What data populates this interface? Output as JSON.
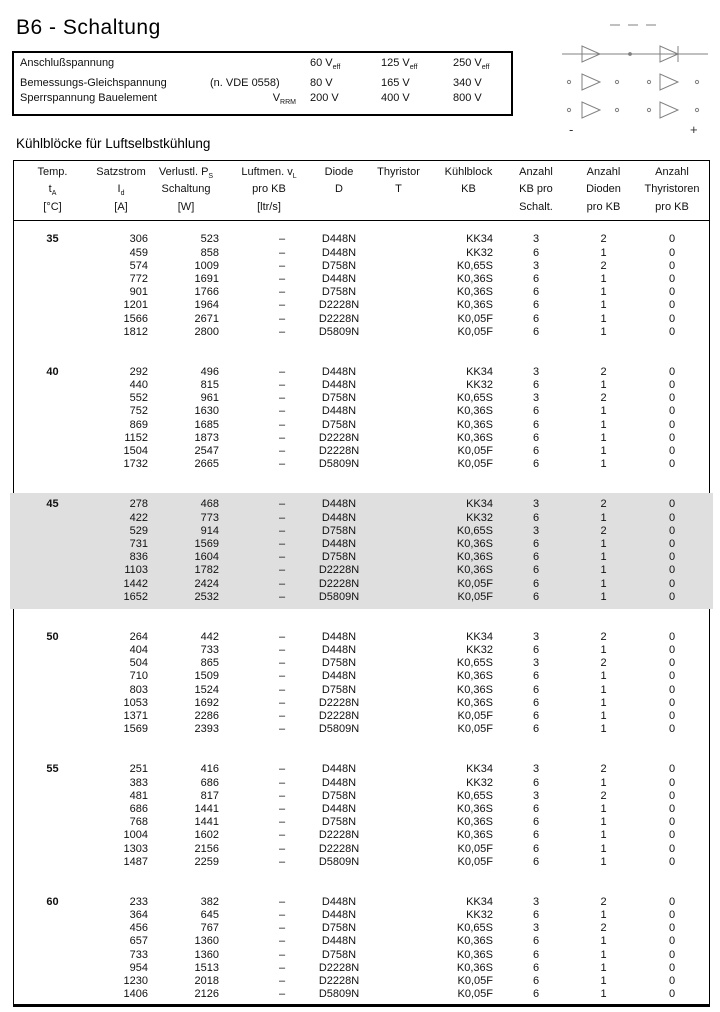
{
  "title": "B6 - Schaltung",
  "section_heading": "Kühlblöcke für Luftselbstkühlung",
  "ratings": {
    "rows": [
      {
        "label": "Anschlußspannung",
        "note": "",
        "values": [
          {
            "t": "60 V",
            "sub": "eff"
          },
          {
            "t": "125 V",
            "sub": "eff"
          },
          {
            "t": "250 V",
            "sub": "eff"
          }
        ]
      },
      {
        "label": "Bemessungs-Gleichspannung",
        "note": "(n. VDE 0558)",
        "values": [
          {
            "t": "80 V",
            "sub": ""
          },
          {
            "t": "165 V",
            "sub": ""
          },
          {
            "t": "340 V",
            "sub": ""
          }
        ]
      },
      {
        "label": "Sperrspannung  Bauelement",
        "note": "",
        "symbol": "V",
        "symbol_sub": "RRM",
        "values": [
          {
            "t": "200 V",
            "sub": ""
          },
          {
            "t": "400 V",
            "sub": ""
          },
          {
            "t": "800 V",
            "sub": ""
          }
        ]
      }
    ]
  },
  "diagram": {
    "minus_label": "-",
    "plus_label": "+"
  },
  "table": {
    "columns": [
      {
        "l1": "Temp.",
        "l1sub": "",
        "l2": "t",
        "l2sub": "A",
        "l3": "[°C]"
      },
      {
        "l1": "Satzstrom",
        "l1sub": "",
        "l2": "I",
        "l2sub": "d",
        "l3": "[A]"
      },
      {
        "l1": "Verlustl. P",
        "l1sub": "S",
        "l2": "Schaltung",
        "l2sub": "",
        "l3": "[W]"
      },
      {
        "l1": "Luftmen. v",
        "l1sub": "L",
        "l2": "pro KB",
        "l2sub": "",
        "l3": "[ltr/s]"
      },
      {
        "l1": "Diode",
        "l1sub": "",
        "l2": "D",
        "l2sub": "",
        "l3": ""
      },
      {
        "l1": "Thyristor",
        "l1sub": "",
        "l2": "T",
        "l2sub": "",
        "l3": ""
      },
      {
        "l1": "Kühlblock",
        "l1sub": "",
        "l2": "KB",
        "l2sub": "",
        "l3": ""
      },
      {
        "l1": "Anzahl",
        "l1sub": "",
        "l2": "KB pro",
        "l2sub": "",
        "l3": "Schalt."
      },
      {
        "l1": "Anzahl",
        "l1sub": "",
        "l2": "Dioden",
        "l2sub": "",
        "l3": "pro KB"
      },
      {
        "l1": "Anzahl",
        "l1sub": "",
        "l2": "Thyristoren",
        "l2sub": "",
        "l3": "pro KB"
      }
    ],
    "groups": [
      {
        "temp": "35",
        "highlighted": false,
        "rows": [
          [
            "306",
            "523",
            "–",
            "D448N",
            "",
            "KK34",
            "3",
            "2",
            "0"
          ],
          [
            "459",
            "858",
            "–",
            "D448N",
            "",
            "KK32",
            "6",
            "1",
            "0"
          ],
          [
            "574",
            "1009",
            "–",
            "D758N",
            "",
            "K0,65S",
            "3",
            "2",
            "0"
          ],
          [
            "772",
            "1691",
            "–",
            "D448N",
            "",
            "K0,36S",
            "6",
            "1",
            "0"
          ],
          [
            "901",
            "1766",
            "–",
            "D758N",
            "",
            "K0,36S",
            "6",
            "1",
            "0"
          ],
          [
            "1201",
            "1964",
            "–",
            "D2228N",
            "",
            "K0,36S",
            "6",
            "1",
            "0"
          ],
          [
            "1566",
            "2671",
            "–",
            "D2228N",
            "",
            "K0,05F",
            "6",
            "1",
            "0"
          ],
          [
            "1812",
            "2800",
            "–",
            "D5809N",
            "",
            "K0,05F",
            "6",
            "1",
            "0"
          ]
        ]
      },
      {
        "temp": "40",
        "highlighted": false,
        "rows": [
          [
            "292",
            "496",
            "–",
            "D448N",
            "",
            "KK34",
            "3",
            "2",
            "0"
          ],
          [
            "440",
            "815",
            "–",
            "D448N",
            "",
            "KK32",
            "6",
            "1",
            "0"
          ],
          [
            "552",
            "961",
            "–",
            "D758N",
            "",
            "K0,65S",
            "3",
            "2",
            "0"
          ],
          [
            "752",
            "1630",
            "–",
            "D448N",
            "",
            "K0,36S",
            "6",
            "1",
            "0"
          ],
          [
            "869",
            "1685",
            "–",
            "D758N",
            "",
            "K0,36S",
            "6",
            "1",
            "0"
          ],
          [
            "1152",
            "1873",
            "–",
            "D2228N",
            "",
            "K0,36S",
            "6",
            "1",
            "0"
          ],
          [
            "1504",
            "2547",
            "–",
            "D2228N",
            "",
            "K0,05F",
            "6",
            "1",
            "0"
          ],
          [
            "1732",
            "2665",
            "–",
            "D5809N",
            "",
            "K0,05F",
            "6",
            "1",
            "0"
          ]
        ]
      },
      {
        "temp": "45",
        "highlighted": true,
        "rows": [
          [
            "278",
            "468",
            "–",
            "D448N",
            "",
            "KK34",
            "3",
            "2",
            "0"
          ],
          [
            "422",
            "773",
            "–",
            "D448N",
            "",
            "KK32",
            "6",
            "1",
            "0"
          ],
          [
            "529",
            "914",
            "–",
            "D758N",
            "",
            "K0,65S",
            "3",
            "2",
            "0"
          ],
          [
            "731",
            "1569",
            "–",
            "D448N",
            "",
            "K0,36S",
            "6",
            "1",
            "0"
          ],
          [
            "836",
            "1604",
            "–",
            "D758N",
            "",
            "K0,36S",
            "6",
            "1",
            "0"
          ],
          [
            "1103",
            "1782",
            "–",
            "D2228N",
            "",
            "K0,36S",
            "6",
            "1",
            "0"
          ],
          [
            "1442",
            "2424",
            "–",
            "D2228N",
            "",
            "K0,05F",
            "6",
            "1",
            "0"
          ],
          [
            "1652",
            "2532",
            "–",
            "D5809N",
            "",
            "K0,05F",
            "6",
            "1",
            "0"
          ]
        ]
      },
      {
        "temp": "50",
        "highlighted": false,
        "rows": [
          [
            "264",
            "442",
            "–",
            "D448N",
            "",
            "KK34",
            "3",
            "2",
            "0"
          ],
          [
            "404",
            "733",
            "–",
            "D448N",
            "",
            "KK32",
            "6",
            "1",
            "0"
          ],
          [
            "504",
            "865",
            "–",
            "D758N",
            "",
            "K0,65S",
            "3",
            "2",
            "0"
          ],
          [
            "710",
            "1509",
            "–",
            "D448N",
            "",
            "K0,36S",
            "6",
            "1",
            "0"
          ],
          [
            "803",
            "1524",
            "–",
            "D758N",
            "",
            "K0,36S",
            "6",
            "1",
            "0"
          ],
          [
            "1053",
            "1692",
            "–",
            "D2228N",
            "",
            "K0,36S",
            "6",
            "1",
            "0"
          ],
          [
            "1371",
            "2286",
            "–",
            "D2228N",
            "",
            "K0,05F",
            "6",
            "1",
            "0"
          ],
          [
            "1569",
            "2393",
            "–",
            "D5809N",
            "",
            "K0,05F",
            "6",
            "1",
            "0"
          ]
        ]
      },
      {
        "temp": "55",
        "highlighted": false,
        "rows": [
          [
            "251",
            "416",
            "–",
            "D448N",
            "",
            "KK34",
            "3",
            "2",
            "0"
          ],
          [
            "383",
            "686",
            "–",
            "D448N",
            "",
            "KK32",
            "6",
            "1",
            "0"
          ],
          [
            "481",
            "817",
            "–",
            "D758N",
            "",
            "K0,65S",
            "3",
            "2",
            "0"
          ],
          [
            "686",
            "1441",
            "–",
            "D448N",
            "",
            "K0,36S",
            "6",
            "1",
            "0"
          ],
          [
            "768",
            "1441",
            "–",
            "D758N",
            "",
            "K0,36S",
            "6",
            "1",
            "0"
          ],
          [
            "1004",
            "1602",
            "–",
            "D2228N",
            "",
            "K0,36S",
            "6",
            "1",
            "0"
          ],
          [
            "1303",
            "2156",
            "–",
            "D2228N",
            "",
            "K0,05F",
            "6",
            "1",
            "0"
          ],
          [
            "1487",
            "2259",
            "–",
            "D5809N",
            "",
            "K0,05F",
            "6",
            "1",
            "0"
          ]
        ]
      },
      {
        "temp": "60",
        "highlighted": false,
        "rows": [
          [
            "233",
            "382",
            "–",
            "D448N",
            "",
            "KK34",
            "3",
            "2",
            "0"
          ],
          [
            "364",
            "645",
            "–",
            "D448N",
            "",
            "KK32",
            "6",
            "1",
            "0"
          ],
          [
            "456",
            "767",
            "–",
            "D758N",
            "",
            "K0,65S",
            "3",
            "2",
            "0"
          ],
          [
            "657",
            "1360",
            "–",
            "D448N",
            "",
            "K0,36S",
            "6",
            "1",
            "0"
          ],
          [
            "733",
            "1360",
            "–",
            "D758N",
            "",
            "K0,36S",
            "6",
            "1",
            "0"
          ],
          [
            "954",
            "1513",
            "–",
            "D2228N",
            "",
            "K0,36S",
            "6",
            "1",
            "0"
          ],
          [
            "1230",
            "2018",
            "–",
            "D2228N",
            "",
            "K0,05F",
            "6",
            "1",
            "0"
          ],
          [
            "1406",
            "2126",
            "–",
            "D5809N",
            "",
            "K0,05F",
            "6",
            "1",
            "0"
          ]
        ]
      }
    ]
  }
}
